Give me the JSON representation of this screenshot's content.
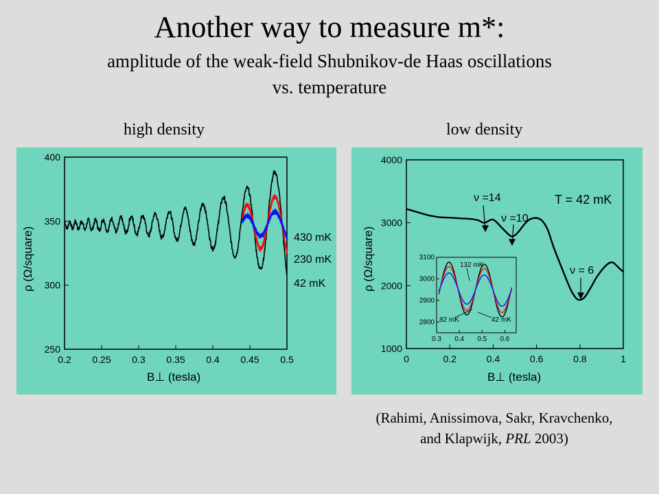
{
  "slide": {
    "title": "Another way to measure m*:",
    "subtitle_line1": "amplitude of the weak-field Shubnikov-de Haas oscillations",
    "subtitle_line2": "vs. temperature",
    "left_label": "high density",
    "right_label": "low density",
    "citation_line1": "(Rahimi, Anissimova, Sakr, Kravchenko,",
    "citation_line2_pre": "and Klapwijk, ",
    "citation_journal": "PRL",
    "citation_year": " 2003)"
  },
  "colors": {
    "panel_bg": "#6fd6bd",
    "trace_black": "#000000",
    "trace_red": "#ee1111",
    "trace_blue": "#1111ee",
    "slide_bg": "#dddddd"
  },
  "chart_data": [
    {
      "type": "line",
      "xlabel": "B⊥ (tesla)",
      "ylabel": "ρ (Ω/square)",
      "xlim": [
        0.2,
        0.5
      ],
      "ylim": [
        250,
        400
      ],
      "xticks": [
        "0.2",
        "0.25",
        "0.3",
        "0.35",
        "0.4",
        "0.45",
        "0.5"
      ],
      "yticks": [
        "250",
        "300",
        "350",
        "400"
      ],
      "series": [
        {
          "name": "42 mK",
          "color": "#000000",
          "x_range": [
            0.2,
            0.5
          ],
          "baseline": 350,
          "amplitude_at_end": 48
        },
        {
          "name": "230 mK",
          "color": "#ee1111",
          "x_range": [
            0.44,
            0.5
          ],
          "baseline": 350,
          "amplitude_at_end": 26
        },
        {
          "name": "430 mK",
          "color": "#1111ee",
          "x_range": [
            0.44,
            0.5
          ],
          "baseline": 350,
          "amplitude_at_end": 12
        }
      ],
      "annotations": [
        "430 mK",
        "230 mK",
        "42 mK"
      ]
    },
    {
      "type": "line",
      "xlabel": "B⊥ (tesla)",
      "ylabel": "ρ (Ω/square)",
      "xlim": [
        0,
        1
      ],
      "ylim": [
        1000,
        4000
      ],
      "xticks": [
        "0",
        "0.2",
        "0.4",
        "0.6",
        "0.8",
        "1"
      ],
      "yticks": [
        "1000",
        "2000",
        "3000",
        "4000"
      ],
      "series": [
        {
          "name": "T = 42 mK",
          "color": "#000000",
          "x": [
            0,
            0.05,
            0.1,
            0.15,
            0.2,
            0.25,
            0.3,
            0.33,
            0.36,
            0.4,
            0.44,
            0.48,
            0.5,
            0.52,
            0.55,
            0.58,
            0.62,
            0.65,
            0.68,
            0.72,
            0.76,
            0.79,
            0.82,
            0.85,
            0.88,
            0.92,
            0.95,
            0.98,
            1.0
          ],
          "y": [
            3220,
            3170,
            3120,
            3090,
            3080,
            3070,
            3060,
            3040,
            3000,
            3050,
            2920,
            2790,
            2800,
            2870,
            3000,
            3070,
            3050,
            2900,
            2600,
            2250,
            1920,
            1780,
            1810,
            1970,
            2150,
            2320,
            2370,
            2280,
            2220
          ]
        }
      ],
      "annotations": [
        "ν =14",
        "ν =10",
        "ν = 6",
        "T = 42 mK"
      ],
      "inset": {
        "xlim": [
          0.3,
          0.65
        ],
        "ylim": [
          2750,
          3100
        ],
        "xticks": [
          "0.3",
          "0.4",
          "0.5",
          "0.6"
        ],
        "yticks": [
          "2800",
          "2900",
          "3000",
          "3100"
        ],
        "labels": [
          "132 mK",
          "82 mK",
          "42 mK"
        ],
        "series": [
          {
            "name": "42 mK",
            "color": "#000000",
            "amplitude": 120
          },
          {
            "name": "82 mK",
            "color": "#ee1111",
            "amplitude": 100
          },
          {
            "name": "132 mK",
            "color": "#1111ee",
            "amplitude": 70
          }
        ]
      }
    }
  ]
}
